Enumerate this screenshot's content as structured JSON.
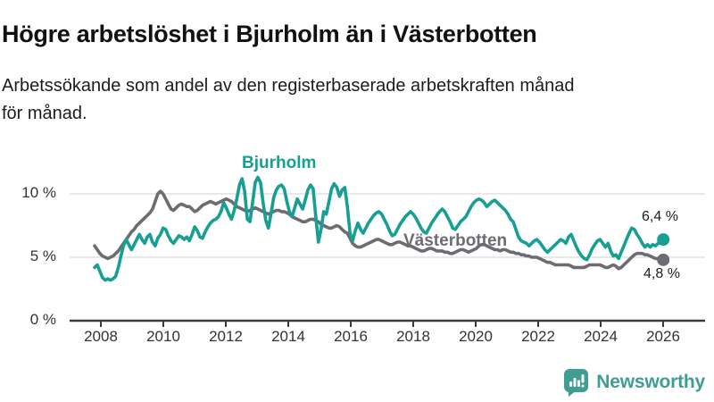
{
  "header": {
    "title": "Högre arbetslöshet i Bjurholm än i Västerbotten",
    "subtitle_line1": "Arbetssökande som andel av den registerbaserade arbetskraften månad",
    "subtitle_line2": "för månad."
  },
  "chart_data": {
    "type": "line",
    "title": "Högre arbetslöshet i Bjurholm än i Västerbotten",
    "subtitle": "Arbetssökande som andel av den registerbaserade arbetskraften månad för månad.",
    "frequency": "monthly",
    "x_start": "2008-01",
    "x_end": "2026-01",
    "xlabel": "",
    "ylabel": "",
    "ylim": [
      0,
      12
    ],
    "grid": "horizontal",
    "x_tick_labels": [
      "2008",
      "2010",
      "2012",
      "2014",
      "2016",
      "2018",
      "2020",
      "2022",
      "2024",
      "2026"
    ],
    "y_tick_labels": [
      "0 %",
      "5 %",
      "10 %"
    ],
    "y_tick_values": [
      0,
      5,
      10
    ],
    "colors": {
      "bjurholm_teal": "#169f92",
      "vasterbotten_gray": "#6f6b72",
      "gridline": "#d9d9d9",
      "axis": "#3b3b3b"
    },
    "series": [
      {
        "name": "Bjurholm",
        "color": "#169f92",
        "end_label": "6,4 %",
        "end_value": 6.4,
        "values": [
          4.2,
          4.4,
          3.9,
          3.4,
          3.2,
          3.3,
          3.2,
          3.3,
          3.5,
          4.2,
          5.1,
          5.9,
          6.4,
          6.0,
          5.6,
          6.0,
          6.4,
          6.8,
          6.4,
          6.1,
          6.6,
          6.8,
          6.2,
          5.9,
          6.5,
          6.8,
          7.3,
          7.2,
          6.7,
          6.3,
          6.1,
          6.4,
          6.7,
          6.6,
          6.4,
          6.6,
          6.3,
          6.8,
          7.4,
          7.1,
          6.6,
          6.5,
          7.0,
          7.4,
          7.7,
          7.9,
          8.0,
          8.2,
          8.6,
          9.3,
          8.9,
          8.4,
          8.0,
          8.7,
          9.6,
          10.7,
          11.2,
          10.2,
          8.0,
          7.8,
          9.3,
          10.9,
          11.3,
          10.9,
          9.3,
          7.9,
          7.3,
          8.4,
          9.7,
          10.3,
          10.6,
          10.7,
          10.4,
          9.4,
          8.6,
          8.2,
          8.9,
          9.6,
          9.2,
          8.8,
          9.5,
          10.3,
          10.7,
          10.4,
          8.2,
          6.2,
          7.2,
          8.6,
          8.4,
          9.4,
          10.4,
          10.8,
          10.5,
          9.8,
          10.3,
          10.5,
          9.0,
          6.9,
          6.3,
          7.1,
          7.7,
          7.2,
          6.9,
          7.3,
          7.7,
          8.0,
          8.3,
          8.5,
          8.6,
          8.4,
          8.0,
          7.6,
          7.1,
          6.7,
          6.8,
          7.2,
          7.6,
          7.9,
          8.2,
          8.4,
          8.6,
          8.4,
          8.1,
          7.7,
          7.3,
          7.0,
          6.9,
          7.3,
          7.7,
          8.0,
          8.3,
          8.6,
          8.8,
          8.6,
          8.2,
          7.8,
          7.3,
          7.2,
          7.5,
          7.8,
          8.0,
          8.2,
          8.6,
          9.0,
          9.3,
          9.5,
          9.6,
          9.5,
          9.3,
          9.0,
          9.2,
          9.4,
          9.5,
          9.3,
          9.1,
          8.9,
          8.7,
          8.4,
          8.0,
          7.8,
          7.2,
          6.6,
          6.3,
          6.2,
          6.1,
          5.9,
          6.1,
          6.3,
          6.4,
          6.2,
          5.9,
          5.6,
          5.4,
          5.6,
          5.8,
          6.0,
          6.2,
          6.4,
          6.3,
          6.1,
          6.6,
          6.8,
          6.3,
          5.8,
          5.4,
          5.1,
          4.9,
          4.8,
          5.2,
          5.7,
          6.0,
          6.3,
          6.4,
          6.1,
          5.8,
          6.1,
          5.5,
          5.1,
          5.2,
          4.9,
          5.4,
          5.9,
          6.4,
          6.9,
          7.3,
          7.2,
          6.8,
          6.5,
          6.1,
          5.8,
          6.0,
          5.8,
          6.0,
          5.9,
          6.1,
          6.2,
          6.4
        ]
      },
      {
        "name": "Västerbotten",
        "color": "#6f6b72",
        "end_label": "4,8 %",
        "end_value": 4.8,
        "values": [
          5.9,
          5.6,
          5.3,
          5.1,
          5.0,
          4.9,
          5.0,
          5.1,
          5.3,
          5.5,
          5.8,
          6.1,
          6.4,
          6.7,
          7.0,
          7.2,
          7.5,
          7.7,
          7.9,
          8.1,
          8.3,
          8.5,
          8.8,
          9.4,
          10.0,
          10.2,
          10.0,
          9.6,
          9.2,
          8.8,
          8.7,
          8.9,
          9.1,
          9.2,
          9.1,
          9.0,
          9.0,
          8.8,
          8.6,
          8.7,
          8.9,
          9.1,
          9.2,
          9.3,
          9.4,
          9.3,
          9.2,
          9.3,
          9.4,
          9.5,
          9.6,
          9.5,
          9.4,
          9.2,
          9.0,
          8.9,
          8.8,
          8.7,
          8.6,
          8.7,
          8.8,
          8.9,
          8.8,
          8.7,
          8.6,
          8.5,
          8.4,
          8.5,
          8.6,
          8.7,
          8.7,
          8.6,
          8.6,
          8.5,
          8.4,
          8.2,
          8.1,
          8.0,
          7.9,
          7.8,
          7.8,
          7.9,
          8.0,
          8.0,
          7.9,
          7.8,
          7.6,
          7.5,
          7.4,
          7.3,
          7.3,
          7.4,
          7.5,
          7.4,
          7.2,
          7.0,
          6.9,
          6.5,
          6.1,
          5.9,
          5.8,
          5.8,
          5.9,
          6.0,
          6.1,
          6.2,
          6.3,
          6.4,
          6.4,
          6.3,
          6.2,
          6.1,
          6.0,
          6.0,
          6.1,
          6.2,
          6.2,
          6.1,
          6.0,
          5.9,
          5.9,
          5.8,
          5.7,
          5.6,
          5.5,
          5.5,
          5.6,
          5.7,
          5.7,
          5.6,
          5.5,
          5.5,
          5.5,
          5.4,
          5.4,
          5.3,
          5.3,
          5.4,
          5.5,
          5.6,
          5.6,
          5.5,
          5.4,
          5.5,
          5.6,
          5.7,
          5.9,
          6.0,
          6.0,
          5.9,
          5.8,
          5.7,
          5.6,
          5.6,
          5.5,
          5.6,
          5.6,
          5.5,
          5.4,
          5.4,
          5.3,
          5.3,
          5.2,
          5.2,
          5.1,
          5.1,
          5.0,
          5.0,
          5.0,
          4.9,
          4.8,
          4.7,
          4.6,
          4.6,
          4.5,
          4.4,
          4.4,
          4.4,
          4.4,
          4.4,
          4.4,
          4.3,
          4.2,
          4.2,
          4.2,
          4.2,
          4.2,
          4.3,
          4.4,
          4.4,
          4.4,
          4.4,
          4.4,
          4.3,
          4.2,
          4.2,
          4.3,
          4.4,
          4.3,
          4.1,
          4.2,
          4.4,
          4.6,
          4.8,
          5.0,
          5.2,
          5.3,
          5.3,
          5.3,
          5.2,
          5.2,
          5.1,
          5.0,
          4.9,
          4.9,
          4.8,
          4.8
        ]
      }
    ]
  },
  "footer": {
    "brand": "Newsworthy",
    "logo_icon": "bar-chart-speech-bubble-icon",
    "brand_color": "#3f9d94"
  }
}
